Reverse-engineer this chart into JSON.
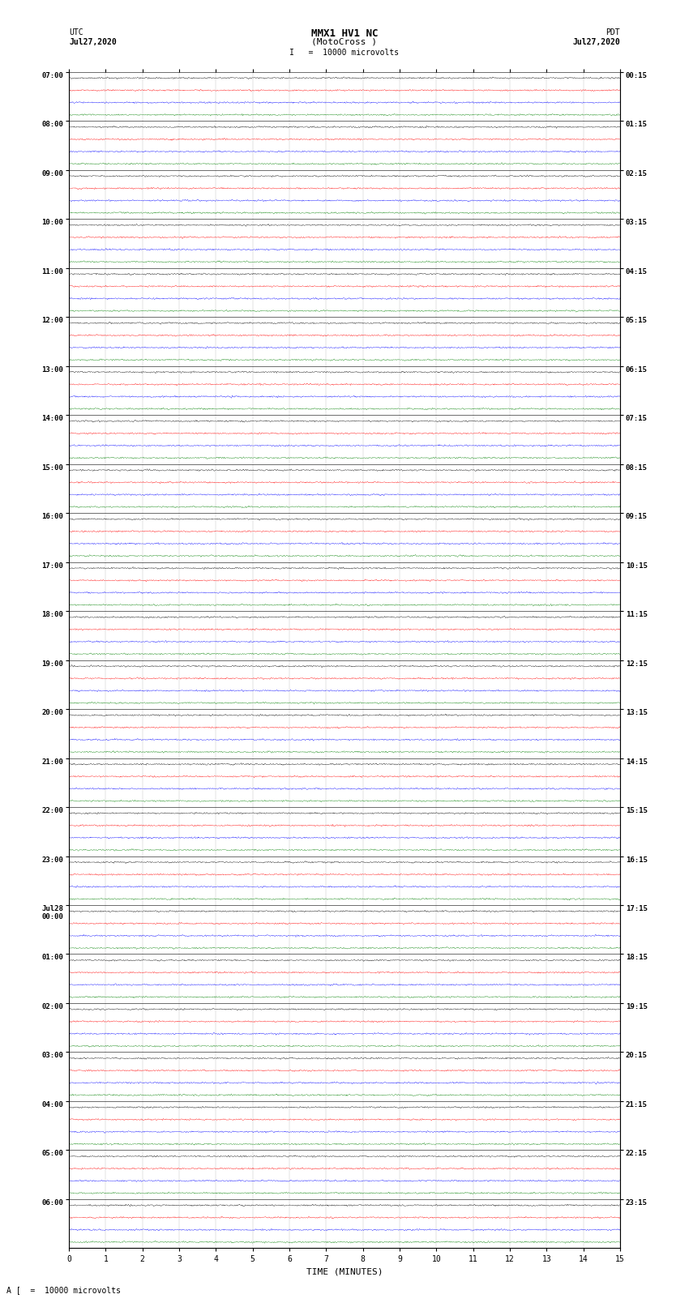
{
  "title_line1": "MMX1 HV1 NC",
  "title_line2": "(MotoCross )",
  "left_label_top": "UTC",
  "left_label_date": "Jul27,2020",
  "right_label_top": "PDT",
  "right_label_date": "Jul27,2020",
  "scale_text": "I   =  10000 microvolts",
  "bottom_legend": "A [  =  10000 microvolts",
  "xlabel": "TIME (MINUTES)",
  "x_min": 0,
  "x_max": 15,
  "utc_times": [
    "07:00",
    "08:00",
    "09:00",
    "10:00",
    "11:00",
    "12:00",
    "13:00",
    "14:00",
    "15:00",
    "16:00",
    "17:00",
    "18:00",
    "19:00",
    "20:00",
    "21:00",
    "22:00",
    "23:00",
    "Jul28\n00:00",
    "01:00",
    "02:00",
    "03:00",
    "04:00",
    "05:00",
    "06:00"
  ],
  "pdt_times": [
    "00:15",
    "01:15",
    "02:15",
    "03:15",
    "04:15",
    "05:15",
    "06:15",
    "07:15",
    "08:15",
    "09:15",
    "10:15",
    "11:15",
    "12:15",
    "13:15",
    "14:15",
    "15:15",
    "16:15",
    "17:15",
    "18:15",
    "19:15",
    "20:15",
    "21:15",
    "22:15",
    "23:15"
  ],
  "trace_colors": [
    "black",
    "red",
    "blue",
    "green"
  ],
  "fig_width": 8.5,
  "fig_height": 16.13,
  "dpi": 100,
  "noise_amp": 0.055,
  "background": "white"
}
